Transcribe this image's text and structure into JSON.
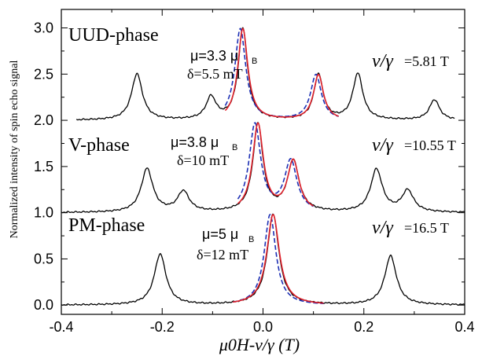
{
  "chart_data": {
    "type": "line",
    "xlabel": "μ0H-ν/γ (T)",
    "ylabel": "Normalized intensity of spin echo signal",
    "xlim": [
      -0.4,
      0.4
    ],
    "ylim": [
      -0.1,
      3.2
    ],
    "xticks": [
      -0.4,
      -0.2,
      0.0,
      0.2,
      0.4
    ],
    "xtick_labels": [
      "-0.4",
      "-0.2",
      "0.0",
      "0.2",
      "0.4"
    ],
    "yticks": [
      0.0,
      0.5,
      1.0,
      1.5,
      2.0,
      2.5,
      3.0
    ],
    "ytick_labels": [
      "0.0",
      "0.5",
      "1.0",
      "1.5",
      "2.0",
      "2.5",
      "3.0"
    ],
    "grid": false,
    "colors": {
      "experiment": "#000000",
      "fit_red": "#e0202a",
      "fit_blue": "#1c2fb4"
    },
    "panels": [
      {
        "phase_label": "UUD-phase",
        "mu_text": "μ=3.3 μ",
        "mu_sub": "B",
        "delta_text": "δ=5.5 mT",
        "nu_symbol": "ν/γ",
        "nu_value": "=5.81 T",
        "baseline": 2.0,
        "x_range": [
          -0.37,
          0.38
        ],
        "peaks": [
          {
            "x": -0.25,
            "height": 0.5,
            "width": 0.013
          },
          {
            "x": -0.103,
            "height": 0.24,
            "width": 0.012
          },
          {
            "x": -0.04,
            "height": 0.99,
            "width": 0.011
          },
          {
            "x": 0.11,
            "height": 0.49,
            "width": 0.011
          },
          {
            "x": 0.188,
            "height": 0.5,
            "width": 0.012
          },
          {
            "x": 0.34,
            "height": 0.22,
            "width": 0.012
          }
        ],
        "fit_red": [
          {
            "x": -0.04,
            "height": 0.99,
            "width": 0.012
          },
          {
            "x": 0.11,
            "height": 0.49,
            "width": 0.012
          }
        ],
        "fit_blue": [
          {
            "x": -0.045,
            "height": 0.99,
            "width": 0.013
          },
          {
            "x": 0.105,
            "height": 0.49,
            "width": 0.013
          }
        ],
        "fit_range": [
          -0.075,
          0.15
        ]
      },
      {
        "phase_label": "V-phase",
        "mu_text": "μ=3.8 μ",
        "mu_sub": "B",
        "delta_text": "δ=10 mT",
        "nu_symbol": "ν/γ",
        "nu_value": "=10.55 T",
        "baseline": 1.0,
        "x_range": [
          -0.4,
          0.4
        ],
        "peaks": [
          {
            "x": -0.23,
            "height": 0.47,
            "width": 0.014
          },
          {
            "x": -0.158,
            "height": 0.22,
            "width": 0.014
          },
          {
            "x": -0.01,
            "height": 0.95,
            "width": 0.012
          },
          {
            "x": 0.06,
            "height": 0.55,
            "width": 0.014
          },
          {
            "x": 0.225,
            "height": 0.46,
            "width": 0.014
          },
          {
            "x": 0.287,
            "height": 0.23,
            "width": 0.014
          }
        ],
        "fit_red": [
          {
            "x": -0.01,
            "height": 0.95,
            "width": 0.013
          },
          {
            "x": 0.06,
            "height": 0.55,
            "width": 0.014
          }
        ],
        "fit_blue": [
          {
            "x": -0.016,
            "height": 0.95,
            "width": 0.014
          },
          {
            "x": 0.055,
            "height": 0.55,
            "width": 0.015
          }
        ],
        "fit_range": [
          -0.05,
          0.1
        ]
      },
      {
        "phase_label": "PM-phase",
        "mu_text": "μ=5 μ",
        "mu_sub": "B",
        "delta_text": "δ=12 mT",
        "nu_symbol": "ν/γ",
        "nu_value": "=16.5 T",
        "baseline": 0.0,
        "x_range": [
          -0.4,
          0.4
        ],
        "peaks": [
          {
            "x": -0.204,
            "height": 0.55,
            "width": 0.014
          },
          {
            "x": 0.02,
            "height": 0.98,
            "width": 0.014
          },
          {
            "x": 0.253,
            "height": 0.53,
            "width": 0.014
          }
        ],
        "fit_red": [
          {
            "x": 0.02,
            "height": 0.98,
            "width": 0.015
          }
        ],
        "fit_blue": [
          {
            "x": 0.014,
            "height": 0.98,
            "width": 0.014
          }
        ],
        "fit_range": [
          -0.06,
          0.12
        ]
      }
    ]
  }
}
